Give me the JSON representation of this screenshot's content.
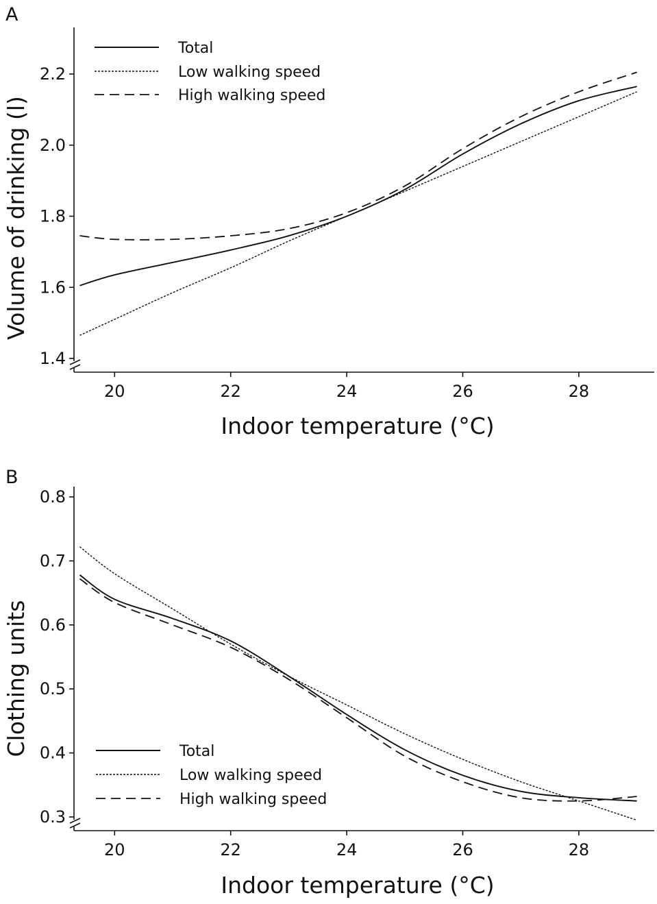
{
  "chart_data": [
    {
      "panel": "A",
      "type": "line",
      "title": "",
      "xlabel": "Indoor  temperature (°C)",
      "ylabel": "Volume of drinking (l)",
      "xlim": [
        19.3,
        29.3
      ],
      "ylim": [
        1.4,
        2.34
      ],
      "xticks": [
        20,
        22,
        24,
        26,
        28
      ],
      "xtick_labels": [
        "20",
        "22",
        "24",
        "26",
        "28"
      ],
      "yticks": [
        1.4,
        1.6,
        1.8,
        2.0,
        2.2
      ],
      "ytick_labels": [
        "1.4",
        "1.6",
        "1.8",
        "2.0",
        "2.2"
      ],
      "y_axis_break": true,
      "grid": false,
      "legend_position": "top-left",
      "series": [
        {
          "name": "Total",
          "style": "solid",
          "x": [
            19.4,
            20,
            21,
            22,
            23,
            24,
            25,
            26,
            27,
            28,
            29
          ],
          "y": [
            1.605,
            1.635,
            1.67,
            1.705,
            1.745,
            1.8,
            1.875,
            1.975,
            2.06,
            2.125,
            2.165
          ]
        },
        {
          "name": "Low walking speed",
          "style": "dotted",
          "x": [
            19.4,
            20,
            21,
            22,
            23,
            24,
            25,
            26,
            27,
            28,
            29
          ],
          "y": [
            1.465,
            1.51,
            1.585,
            1.655,
            1.73,
            1.8,
            1.87,
            1.94,
            2.01,
            2.08,
            2.15
          ]
        },
        {
          "name": "High walking speed",
          "style": "dashed",
          "x": [
            19.4,
            20,
            21,
            22,
            23,
            24,
            25,
            26,
            27,
            28,
            29
          ],
          "y": [
            1.745,
            1.735,
            1.735,
            1.745,
            1.765,
            1.81,
            1.885,
            1.99,
            2.08,
            2.15,
            2.205
          ]
        }
      ]
    },
    {
      "panel": "B",
      "type": "line",
      "title": "",
      "xlabel": "Indoor  temperature (°C)",
      "ylabel": "Clothing units",
      "xlim": [
        19.3,
        29.3
      ],
      "ylim": [
        0.3,
        0.815
      ],
      "xticks": [
        20,
        22,
        24,
        26,
        28
      ],
      "xtick_labels": [
        "20",
        "22",
        "24",
        "26",
        "28"
      ],
      "yticks": [
        0.3,
        0.4,
        0.5,
        0.6,
        0.7,
        0.8
      ],
      "ytick_labels": [
        "0.3",
        "0.4",
        "0.5",
        "0.6",
        "0.7",
        "0.8"
      ],
      "y_axis_break": true,
      "grid": false,
      "legend_position": "bottom-left",
      "series": [
        {
          "name": "Total",
          "style": "solid",
          "x": [
            19.4,
            20,
            21,
            22,
            23,
            24,
            25,
            26,
            27,
            28,
            29
          ],
          "y": [
            0.678,
            0.64,
            0.61,
            0.575,
            0.52,
            0.46,
            0.405,
            0.365,
            0.34,
            0.33,
            0.325
          ]
        },
        {
          "name": "Low walking speed",
          "style": "dotted",
          "x": [
            19.4,
            20,
            21,
            22,
            23,
            24,
            25,
            26,
            27,
            28,
            29
          ],
          "y": [
            0.722,
            0.68,
            0.625,
            0.57,
            0.52,
            0.475,
            0.43,
            0.39,
            0.355,
            0.325,
            0.295
          ]
        },
        {
          "name": "High walking speed",
          "style": "dashed",
          "x": [
            19.4,
            20,
            21,
            22,
            23,
            24,
            25,
            26,
            27,
            28,
            29
          ],
          "y": [
            0.672,
            0.635,
            0.6,
            0.565,
            0.515,
            0.455,
            0.395,
            0.355,
            0.33,
            0.325,
            0.332
          ]
        }
      ]
    }
  ],
  "panel_labels": [
    "A",
    "B"
  ]
}
